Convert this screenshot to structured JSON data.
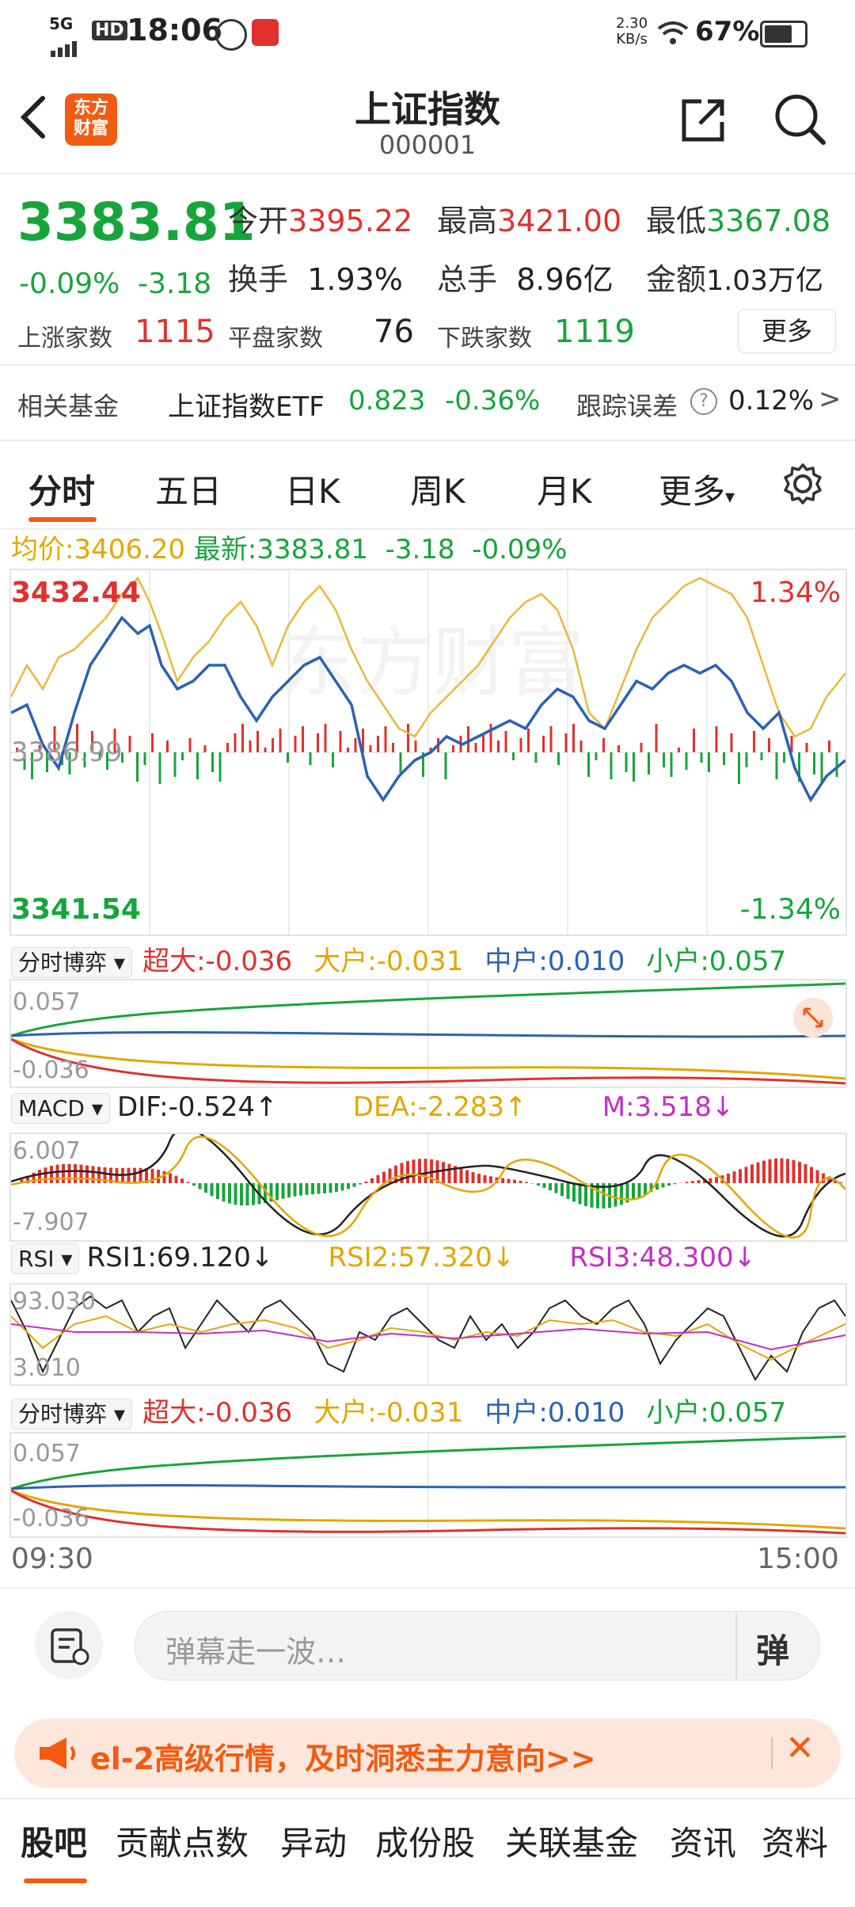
{
  "status_bar": {
    "network": "5G",
    "hd": "HD",
    "time": "18:06",
    "speed_top": "2.30",
    "speed_unit": "KB/s",
    "battery": "67%"
  },
  "header": {
    "back_icon": "chevron-left-icon",
    "logo_text_line1": "东方",
    "logo_text_line2": "财富",
    "title": "上证指数",
    "code": "000001",
    "share_icon": "share-icon",
    "search_icon": "search-icon"
  },
  "quote": {
    "price": "3383.81",
    "change_pct": "-0.09%",
    "change": "-3.18",
    "open_label": "今开",
    "open": "3395.22",
    "high_label": "最高",
    "high": "3421.00",
    "low_label": "最低",
    "low": "3367.08",
    "turnover_label": "换手",
    "turnover": "1.93%",
    "volume_label": "总手",
    "volume": "8.96亿",
    "amount_label": "金额",
    "amount": "1.03万亿",
    "up_label": "上涨家数",
    "up": "1115",
    "flat_label": "平盘家数",
    "flat": "76",
    "down_label": "下跌家数",
    "down": "1119",
    "more_button": "更多"
  },
  "fund": {
    "label": "相关基金",
    "name": "上证指数ETF",
    "price": "0.823",
    "change": "-0.36%",
    "tracking_label": "跟踪误差",
    "tracking_value": "0.12%",
    "arrow": ">"
  },
  "tabs": {
    "items": [
      "分时",
      "五日",
      "日K",
      "周K",
      "月K",
      "更多"
    ],
    "active": "分时",
    "more_arrow": "▾",
    "settings_icon": "gear-icon"
  },
  "intraday": {
    "avg_label": "均价:",
    "avg": "3406.20",
    "latest_label": "最新:",
    "latest": "3383.81",
    "change": "-3.18",
    "change_pct": "-0.09%",
    "ymax": "3432.44",
    "ymid": "3386.99",
    "ymin": "3341.54",
    "pct_max": "1.34%",
    "pct_min": "-1.34%",
    "watermark": "东方财富"
  },
  "flow1": {
    "selector": "分时博弈",
    "selector_arrow": "▾",
    "super_label": "超大:",
    "super": "-0.036",
    "big_label": "大户:",
    "big": "-0.031",
    "mid_label": "中户:",
    "mid": "0.010",
    "small_label": "小户:",
    "small": "0.057",
    "ytop": "0.057",
    "ybottom": "-0.036"
  },
  "macd": {
    "selector": "MACD",
    "selector_arrow": "▾",
    "dif": "DIF:-0.524",
    "dif_arrow": "↑",
    "dea": "DEA:-2.283",
    "dea_arrow": "↑",
    "m": "M:3.518",
    "m_arrow": "↓",
    "ytop": "6.007",
    "ybottom": "-7.907"
  },
  "rsi": {
    "selector": "RSI",
    "selector_arrow": "▾",
    "rsi1": "RSI1:69.120",
    "rsi1_arrow": "↓",
    "rsi2": "RSI2:57.320",
    "rsi2_arrow": "↓",
    "rsi3": "RSI3:48.300",
    "rsi3_arrow": "↓",
    "ytop": "93.030",
    "ybottom": "3.010"
  },
  "flow2": {
    "selector": "分时博弈",
    "selector_arrow": "▾",
    "super_label": "超大:",
    "super": "-0.036",
    "big_label": "大户:",
    "big": "-0.031",
    "mid_label": "中户:",
    "mid": "0.010",
    "small_label": "小户:",
    "small": "0.057",
    "ytop": "0.057",
    "ybottom": "-0.036"
  },
  "time_axis": {
    "start": "09:30",
    "end": "15:00"
  },
  "comment": {
    "placeholder": "弹幕走一波…",
    "danmaku_btn": "弹"
  },
  "banner": {
    "text": "el-2高级行情，及时洞悉主力意向>>",
    "close": "✕"
  },
  "bottom_tabs": {
    "items": [
      "股吧",
      "贡献点数",
      "异动",
      "成份股",
      "关联基金",
      "资讯",
      "资料"
    ],
    "active": "股吧"
  },
  "colors": {
    "up": "#e0312e",
    "down": "#17a53b",
    "accent": "#f25b11",
    "blue": "#2a62b5",
    "yellow": "#e3a700",
    "purple": "#c22ec8"
  }
}
